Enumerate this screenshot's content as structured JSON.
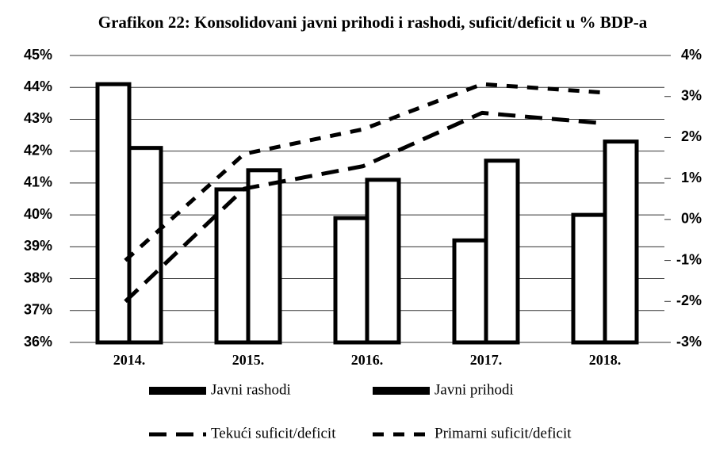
{
  "chart_data": {
    "type": "bar",
    "title": "Grafikon 22: Konsolidovani javni prihodi i rashodi, suficit/deficit u % BDP-a",
    "categories": [
      "2014.",
      "2015.",
      "2016.",
      "2017.",
      "2018."
    ],
    "series": [
      {
        "name": "Javni rashodi",
        "type": "bar",
        "color": "#000000",
        "values": [
          44.1,
          40.8,
          39.9,
          39.2,
          40.0
        ]
      },
      {
        "name": "Javni prihodi",
        "type": "bar",
        "color": "#000000",
        "values": [
          42.1,
          41.4,
          41.1,
          41.7,
          42.3
        ]
      },
      {
        "name": "Tekući suficit/deficit",
        "type": "line",
        "axis": "y2",
        "color": "#000000",
        "dash": "22 12",
        "values": [
          -2.0,
          0.75,
          1.3,
          2.6,
          2.35
        ]
      },
      {
        "name": "Primarni suficit/deficit",
        "type": "line",
        "axis": "y2",
        "color": "#000000",
        "dash": "14 12",
        "values": [
          -1.0,
          1.6,
          2.2,
          3.3,
          3.1
        ]
      }
    ],
    "ylim": [
      36,
      45
    ],
    "yticks": [
      {
        "value": 36,
        "label": "36%"
      },
      {
        "value": 37,
        "label": "37%"
      },
      {
        "value": 38,
        "label": "38%"
      },
      {
        "value": 39,
        "label": "39%"
      },
      {
        "value": 40,
        "label": "40%"
      },
      {
        "value": 41,
        "label": "41%"
      },
      {
        "value": 42,
        "label": "42%"
      },
      {
        "value": 43,
        "label": "43%"
      },
      {
        "value": 44,
        "label": "44%"
      },
      {
        "value": 45,
        "label": "45%"
      }
    ],
    "y2lim": [
      -3,
      4
    ],
    "y2ticks": [
      {
        "value": -3,
        "label": "-3%"
      },
      {
        "value": -2,
        "label": "-2%"
      },
      {
        "value": -1,
        "label": "-1%"
      },
      {
        "value": 0,
        "label": "0%"
      },
      {
        "value": 1,
        "label": "1%"
      },
      {
        "value": 2,
        "label": "2%"
      },
      {
        "value": 3,
        "label": "3%"
      },
      {
        "value": 4,
        "label": "4%"
      }
    ],
    "grid": true
  }
}
